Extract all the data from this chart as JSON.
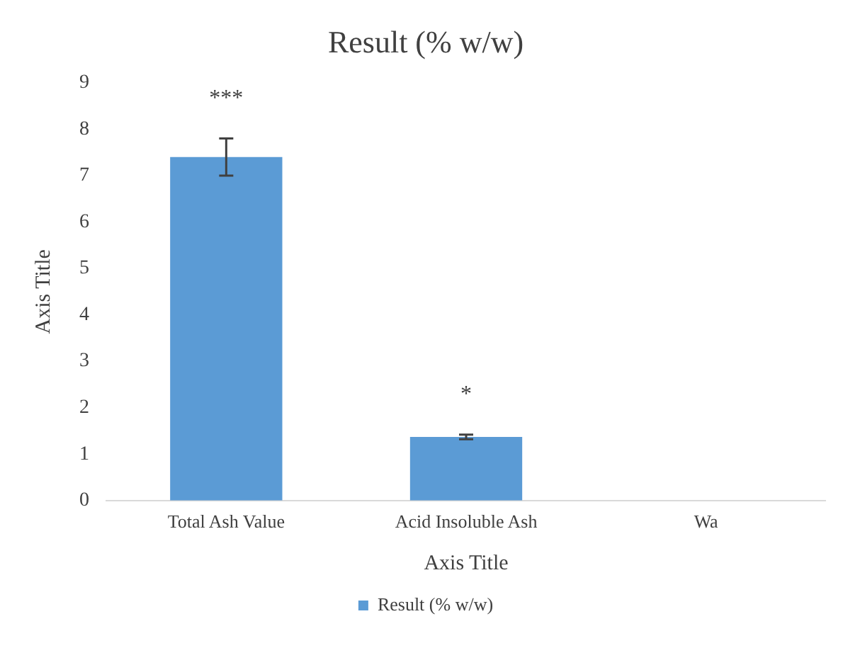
{
  "chart_data": {
    "type": "bar",
    "title": "Result (% w/w)",
    "xlabel": "Axis Title",
    "ylabel": "Axis Title",
    "categories": [
      "Total Ash Value",
      "Acid Insoluble Ash",
      "Wa"
    ],
    "series": [
      {
        "name": "Result (% w/w)",
        "color": "#5b9bd5",
        "values": [
          7.4,
          1.37,
          null
        ],
        "errors": [
          0.4,
          0.05,
          null
        ]
      }
    ],
    "ylim": [
      0,
      9
    ],
    "yticks": [
      0,
      1,
      2,
      3,
      4,
      5,
      6,
      7,
      8,
      9
    ],
    "grid": false,
    "legend": "bottom",
    "annotations": [
      "***",
      "*"
    ]
  }
}
